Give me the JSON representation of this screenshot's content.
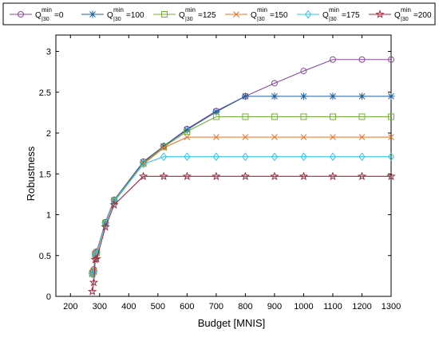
{
  "chart_data": {
    "type": "line",
    "title": "",
    "xlabel": "Budget [MNIS]",
    "ylabel": "Robustness",
    "xlim": [
      150,
      1300
    ],
    "ylim": [
      0,
      3.2
    ],
    "xticks": [
      200,
      300,
      400,
      500,
      600,
      700,
      800,
      900,
      1000,
      1100,
      1200,
      1300
    ],
    "yticks": [
      0,
      0.5,
      1,
      1.5,
      2,
      2.5,
      3
    ],
    "ytick_labels": [
      "0",
      "0.5",
      "1",
      "1.5",
      "2",
      "2.5",
      "3"
    ],
    "grid": false,
    "legend_position": "top",
    "x": [
      275,
      280,
      285,
      290,
      320,
      350,
      450,
      520,
      600,
      700,
      800,
      900,
      1000,
      1100,
      1200,
      1300
    ],
    "series": [
      {
        "name": "Q^min_|30=0",
        "legend_main": "Q",
        "legend_sup": "min",
        "legend_sub": "|30",
        "legend_tail": "=0",
        "color": "#8a4a9e",
        "marker": "circle",
        "values": [
          0.3,
          0.33,
          0.53,
          0.55,
          0.91,
          1.18,
          1.65,
          1.84,
          2.05,
          2.27,
          2.45,
          2.61,
          2.76,
          2.9,
          2.9,
          2.9
        ]
      },
      {
        "name": "Q^min_|30=100",
        "legend_main": "Q",
        "legend_sup": "min",
        "legend_sub": "|30",
        "legend_tail": "=100",
        "color": "#1f5f9e",
        "marker": "asterisk",
        "values": [
          0.28,
          0.31,
          0.52,
          0.54,
          0.9,
          1.18,
          1.64,
          1.84,
          2.04,
          2.26,
          2.45,
          2.45,
          2.45,
          2.45,
          2.45,
          2.45
        ]
      },
      {
        "name": "Q^min_|30=125",
        "legend_main": "Q",
        "legend_sup": "min",
        "legend_sub": "|30",
        "legend_tail": "=125",
        "color": "#74b03a",
        "marker": "square",
        "values": [
          0.28,
          0.31,
          0.52,
          0.54,
          0.9,
          1.17,
          1.63,
          1.83,
          2.02,
          2.2,
          2.2,
          2.2,
          2.2,
          2.2,
          2.2,
          2.2
        ]
      },
      {
        "name": "Q^min_|30=150",
        "legend_main": "Q",
        "legend_sup": "min",
        "legend_sub": "|30",
        "legend_tail": "=150",
        "color": "#e8752a",
        "marker": "x",
        "values": [
          0.27,
          0.3,
          0.51,
          0.53,
          0.89,
          1.16,
          1.62,
          1.82,
          1.95,
          1.95,
          1.95,
          1.95,
          1.95,
          1.95,
          1.95,
          1.95
        ]
      },
      {
        "name": "Q^min_|30=175",
        "legend_main": "Q",
        "legend_sup": "min",
        "legend_sub": "|30",
        "legend_tail": "=175",
        "color": "#35c4e8",
        "marker": "diamond",
        "values": [
          0.27,
          0.3,
          0.5,
          0.52,
          0.89,
          1.16,
          1.62,
          1.71,
          1.71,
          1.71,
          1.71,
          1.71,
          1.71,
          1.71,
          1.71,
          1.71
        ]
      },
      {
        "name": "Q^min_|30=200",
        "legend_main": "Q",
        "legend_sup": "min",
        "legend_sub": "|30",
        "legend_tail": "=200",
        "color": "#a3283f",
        "marker": "star",
        "values": [
          0.06,
          0.17,
          0.45,
          0.46,
          0.85,
          1.12,
          1.47,
          1.47,
          1.47,
          1.47,
          1.47,
          1.47,
          1.47,
          1.47,
          1.47,
          1.47
        ]
      }
    ]
  }
}
